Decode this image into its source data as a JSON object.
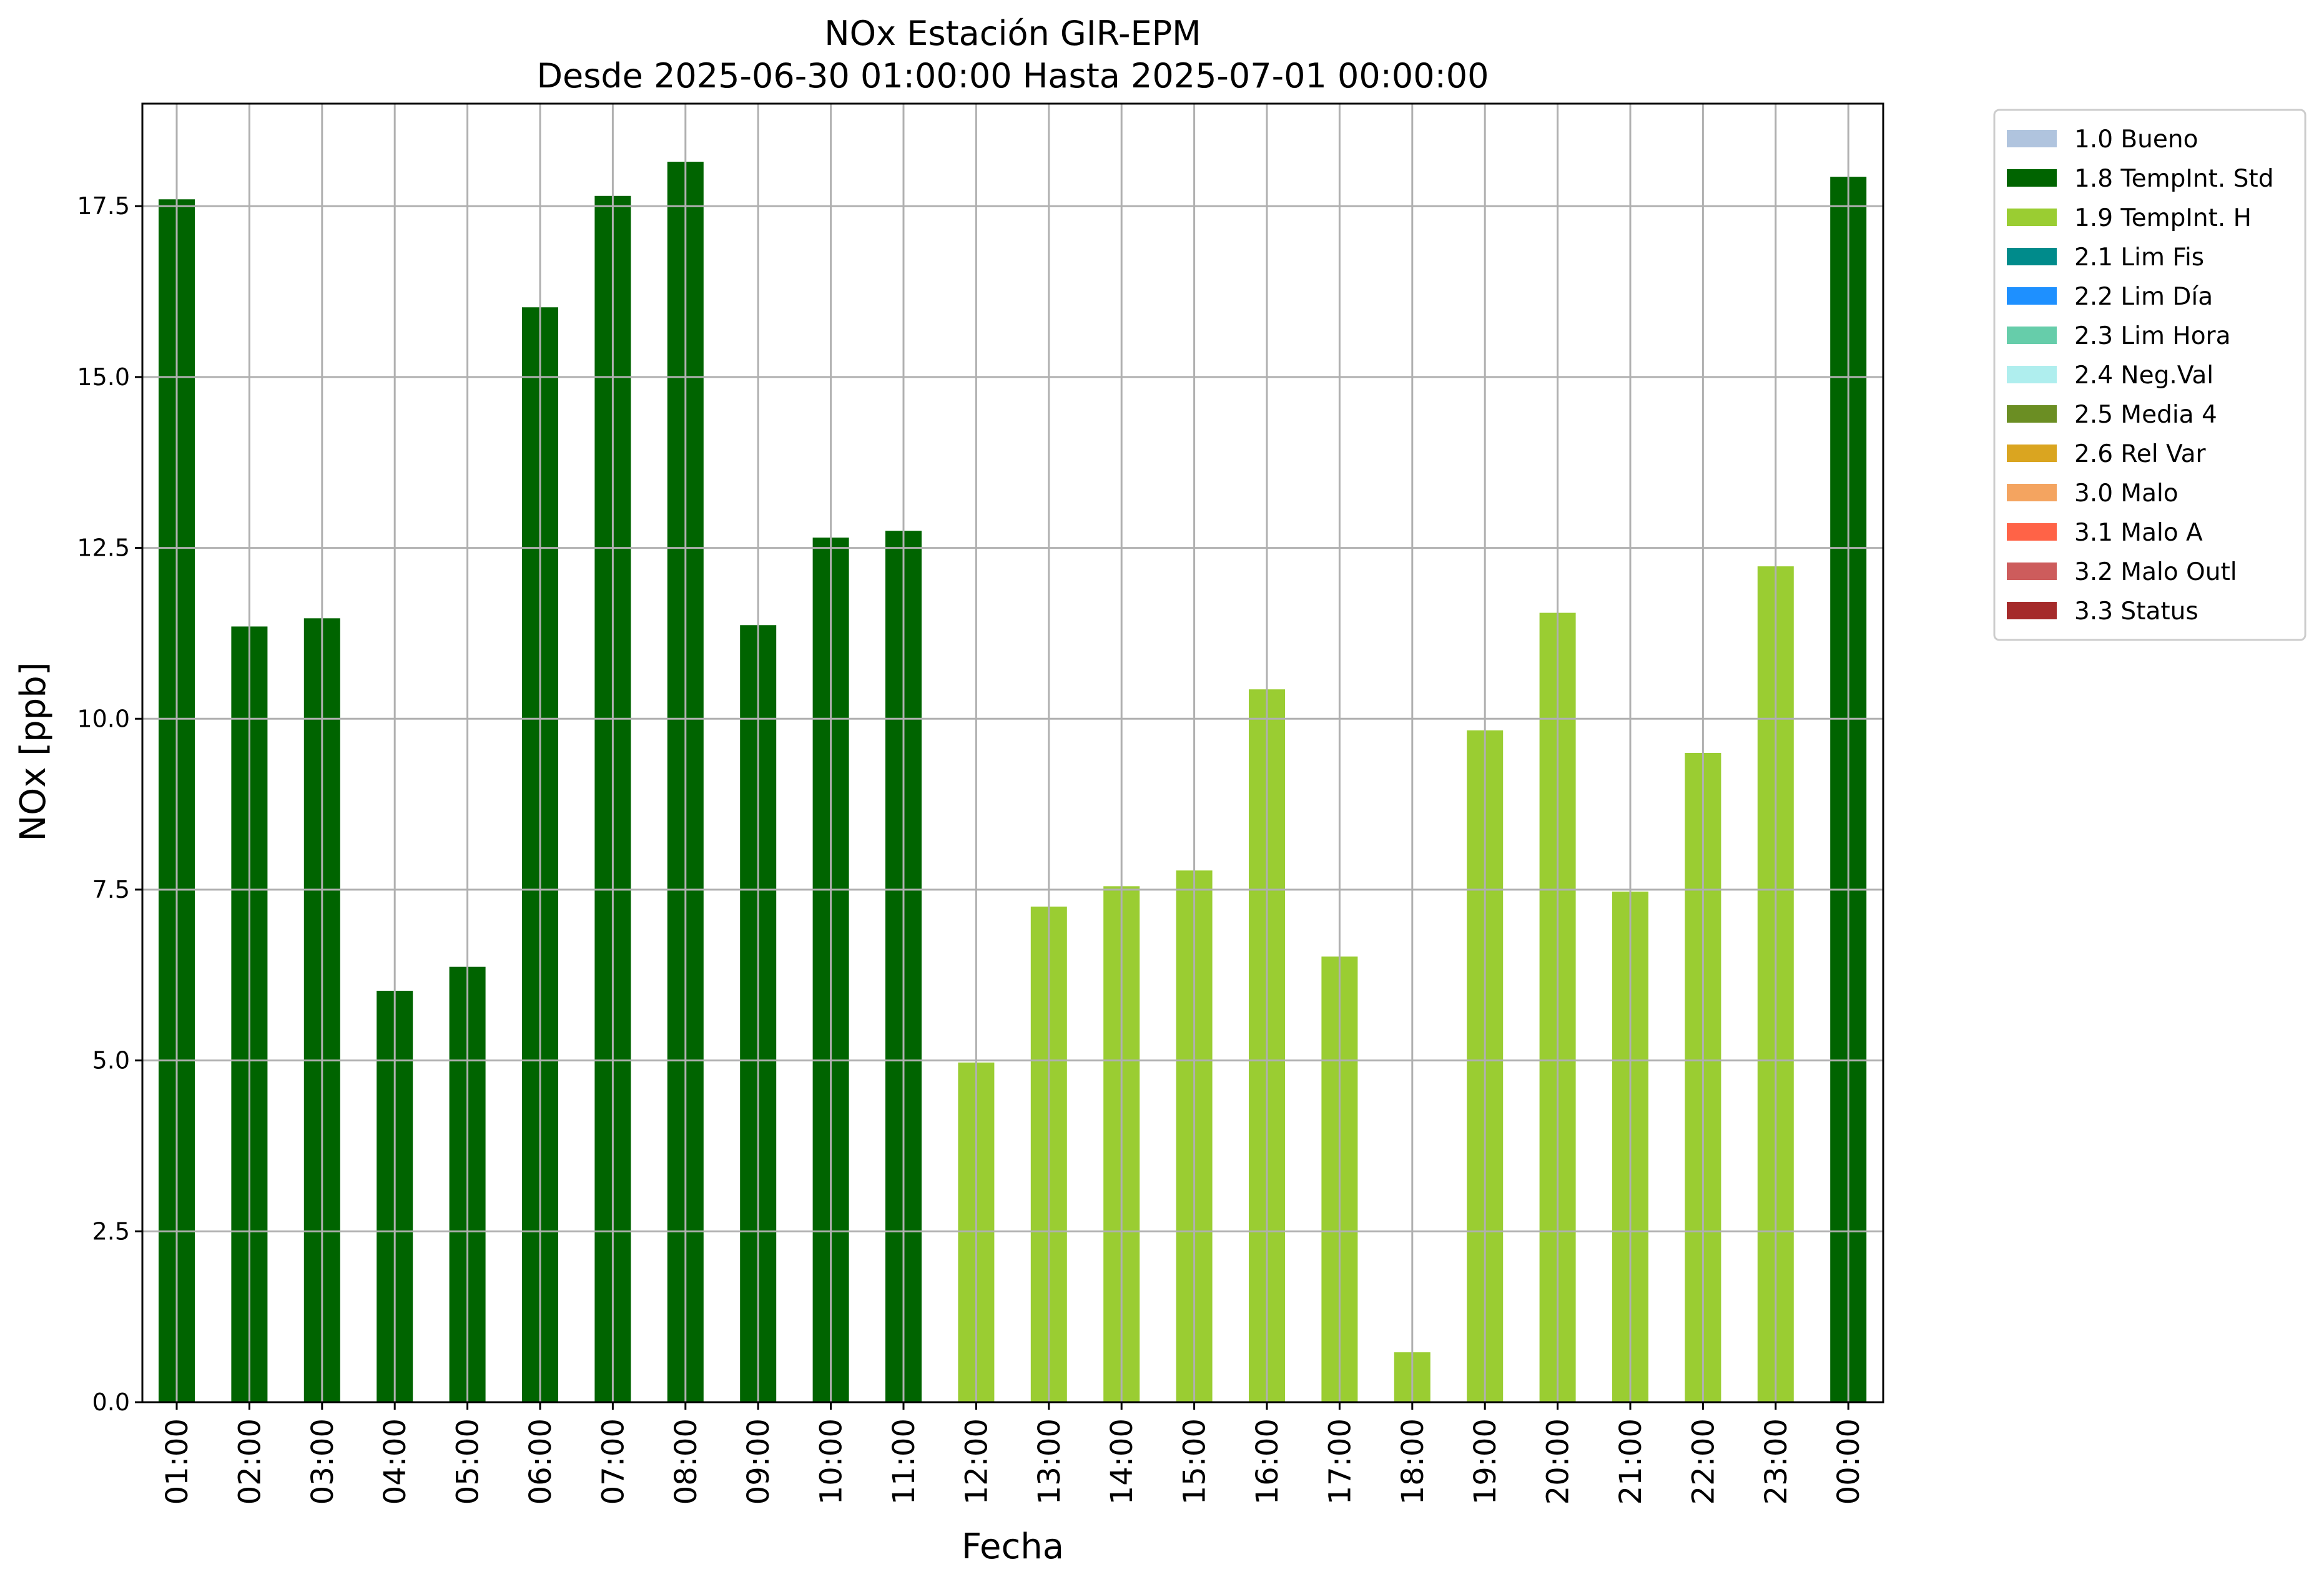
{
  "chart_data": {
    "type": "bar",
    "title": "NOx Estación GIR-EPM",
    "subtitle": "Desde 2025-06-30 01:00:00 Hasta 2025-07-01 00:00:00",
    "xlabel": "Fecha",
    "ylabel": "NOx [ppb]",
    "ylim": [
      0,
      19
    ],
    "yticks": [
      0.0,
      2.5,
      5.0,
      7.5,
      10.0,
      12.5,
      15.0,
      17.5
    ],
    "ytick_labels": [
      "0.0",
      "2.5",
      "5.0",
      "7.5",
      "10.0",
      "12.5",
      "15.0",
      "17.5"
    ],
    "grid": true,
    "legend_position": "outside-top-right",
    "categories": [
      "01:00",
      "02:00",
      "03:00",
      "04:00",
      "05:00",
      "06:00",
      "07:00",
      "08:00",
      "09:00",
      "10:00",
      "11:00",
      "12:00",
      "13:00",
      "14:00",
      "15:00",
      "16:00",
      "17:00",
      "18:00",
      "19:00",
      "20:00",
      "21:00",
      "22:00",
      "23:00",
      "00:00"
    ],
    "values": [
      17.6,
      11.35,
      11.47,
      6.02,
      6.37,
      16.02,
      17.65,
      18.15,
      11.37,
      12.65,
      12.75,
      4.97,
      7.25,
      7.55,
      7.78,
      10.43,
      6.52,
      0.73,
      9.83,
      11.55,
      7.47,
      9.5,
      12.23,
      17.93
    ],
    "bar_flags": [
      "1.8 TempInt. Std",
      "1.8 TempInt. Std",
      "1.8 TempInt. Std",
      "1.8 TempInt. Std",
      "1.8 TempInt. Std",
      "1.8 TempInt. Std",
      "1.8 TempInt. Std",
      "1.8 TempInt. Std",
      "1.8 TempInt. Std",
      "1.8 TempInt. Std",
      "1.8 TempInt. Std",
      "1.9 TempInt. H",
      "1.9 TempInt. H",
      "1.9 TempInt. H",
      "1.9 TempInt. H",
      "1.9 TempInt. H",
      "1.9 TempInt. H",
      "1.9 TempInt. H",
      "1.9 TempInt. H",
      "1.9 TempInt. H",
      "1.9 TempInt. H",
      "1.9 TempInt. H",
      "1.9 TempInt. H",
      "1.8 TempInt. Std"
    ],
    "legend": [
      {
        "label": "1.0 Bueno",
        "color": "#b0c4de"
      },
      {
        "label": "1.8 TempInt. Std",
        "color": "#006400"
      },
      {
        "label": "1.9 TempInt. H",
        "color": "#9acd32"
      },
      {
        "label": "2.1 Lim Fis",
        "color": "#008b8b"
      },
      {
        "label": "2.2 Lim Día",
        "color": "#1e90ff"
      },
      {
        "label": "2.3 Lim Hora",
        "color": "#66cdaa"
      },
      {
        "label": "2.4 Neg.Val",
        "color": "#afeeee"
      },
      {
        "label": "2.5 Media 4",
        "color": "#6b8e23"
      },
      {
        "label": "2.6 Rel Var",
        "color": "#daa520"
      },
      {
        "label": "3.0 Malo",
        "color": "#f4a460"
      },
      {
        "label": "3.1 Malo A",
        "color": "#ff6347"
      },
      {
        "label": "3.2 Malo Outl",
        "color": "#cd5c5c"
      },
      {
        "label": "3.3 Status",
        "color": "#a52a2a"
      }
    ]
  }
}
